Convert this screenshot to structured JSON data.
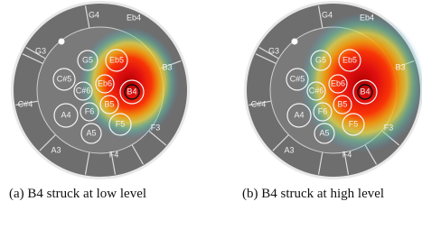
{
  "figure": {
    "panels": [
      {
        "caption": "(a) B4 struck at low level"
      },
      {
        "caption": "(b) B4 struck at high level"
      }
    ],
    "notes": [
      "G3",
      "G4",
      "Eb4",
      "B3",
      "F3",
      "F4",
      "A3",
      "C#4",
      "C#5",
      "G5",
      "Eb5",
      "C#6",
      "Eb6",
      "B4",
      "A4",
      "F6",
      "B5",
      "F5",
      "A5"
    ]
  }
}
